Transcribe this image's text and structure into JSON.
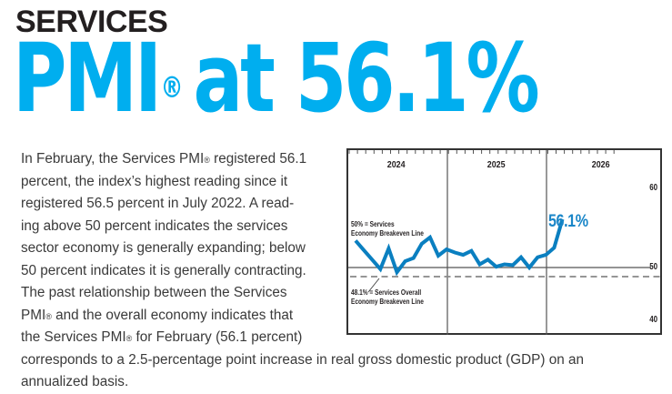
{
  "header": {
    "kicker": "SERVICES",
    "headline_main": "PMI",
    "headline_reg": "®",
    "headline_rest": "at 56.1%"
  },
  "body": {
    "lines": [
      [
        "In February, the Services PMI",
        "®",
        " registered 56.1"
      ],
      [
        "percent, the index’s highest reading since it"
      ],
      [
        "registered 56.5 percent in July 2022. A read-"
      ],
      [
        "ing above 50 percent indicates the services"
      ],
      [
        "sector economy is generally expanding; below"
      ],
      [
        "50 percent indicates it is generally contracting."
      ],
      [
        "The past relationship between the Services"
      ],
      [
        "PMI",
        "®",
        " and the overall economy indicates that"
      ],
      [
        "the Services PMI",
        "®",
        " for February (56.1 percent)"
      ],
      [
        "corresponds to a 2.5-percentage point increase in real gross domestic product (GDP) on an"
      ],
      [
        "annualized basis."
      ]
    ]
  },
  "chart": {
    "callout": "56.1%",
    "breakeven_services_label_1": "50% = Services",
    "breakeven_services_label_2": "Economy Breakeven Line",
    "breakeven_overall_label_1": "48.1% = Services Overall",
    "breakeven_overall_label_2": "Economy Breakeven Line",
    "years": [
      "2024",
      "2025",
      "2026"
    ],
    "yticks": [
      "60",
      "50",
      "40"
    ],
    "line_color": "#0a7fc0",
    "callout_color": "#1a86c8"
  },
  "chart_data": {
    "type": "line",
    "title": "Services PMI at 56.1%",
    "xlabel": "",
    "ylabel": "",
    "x": [
      "Jan 2024",
      "Feb 2024",
      "Mar 2024",
      "Apr 2024",
      "May 2024",
      "Jun 2024",
      "Jul 2024",
      "Aug 2024",
      "Sep 2024",
      "Oct 2024",
      "Nov 2024",
      "Dec 2024",
      "Jan 2025",
      "Feb 2025",
      "Mar 2025",
      "Apr 2025",
      "May 2025",
      "Jun 2025",
      "Jul 2025",
      "Aug 2025",
      "Sep 2025",
      "Oct 2025",
      "Nov 2025",
      "Dec 2025",
      "Jan 2026",
      "Feb 2026"
    ],
    "series": [
      {
        "name": "Services PMI",
        "values": [
          53.4,
          52.2,
          51.0,
          49.8,
          52.4,
          49.4,
          50.8,
          51.2,
          53.0,
          53.8,
          51.5,
          52.3,
          51.9,
          51.6,
          52.1,
          50.4,
          51.0,
          50.1,
          50.4,
          50.3,
          51.3,
          50.0,
          51.3,
          51.6,
          52.5,
          56.1
        ]
      }
    ],
    "reference_lines": [
      {
        "value": 50,
        "label": "50% = Services Economy Breakeven Line",
        "style": "solid"
      },
      {
        "value": 48.1,
        "label": "48.1% = Services Overall Economy Breakeven Line",
        "style": "dashed"
      }
    ],
    "annotations": [
      "56.1%"
    ],
    "x_groups": [
      "2024",
      "2025",
      "2026"
    ],
    "yticks": [
      40,
      50,
      60
    ],
    "ylim": [
      38,
      65
    ],
    "grid": false,
    "legend": null
  }
}
